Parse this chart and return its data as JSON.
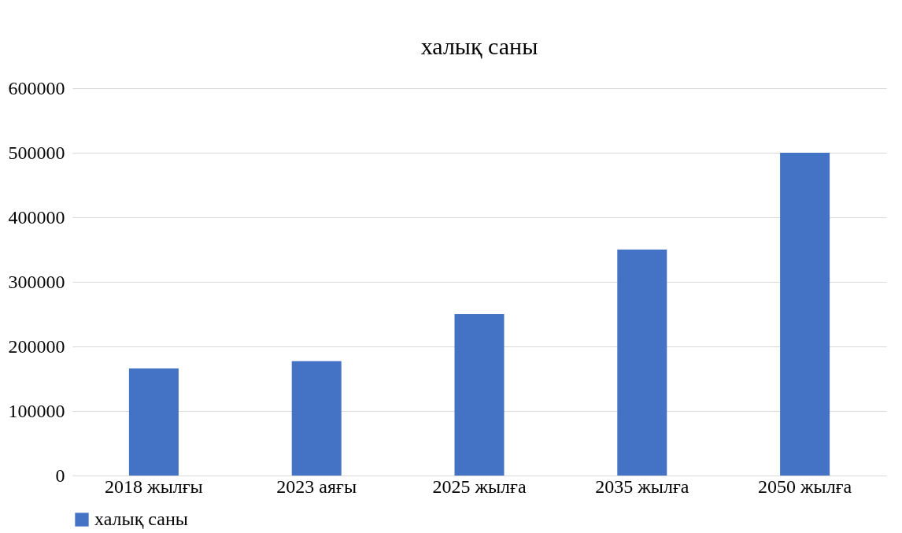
{
  "chart_data": {
    "type": "bar",
    "title": "халық саны",
    "categories": [
      "2018 жылғы",
      "2023 аяғы",
      "2025 жылға",
      "2035 жылға",
      "2050 жылға"
    ],
    "series": [
      {
        "name": "халық саны",
        "color": "#4472c4",
        "values": [
          166000,
          177000,
          250000,
          350000,
          500000
        ]
      }
    ],
    "ylim": [
      0,
      600000
    ],
    "yticks": [
      0,
      100000,
      200000,
      300000,
      400000,
      500000,
      600000
    ],
    "grid": "y",
    "legend": "bottom"
  }
}
